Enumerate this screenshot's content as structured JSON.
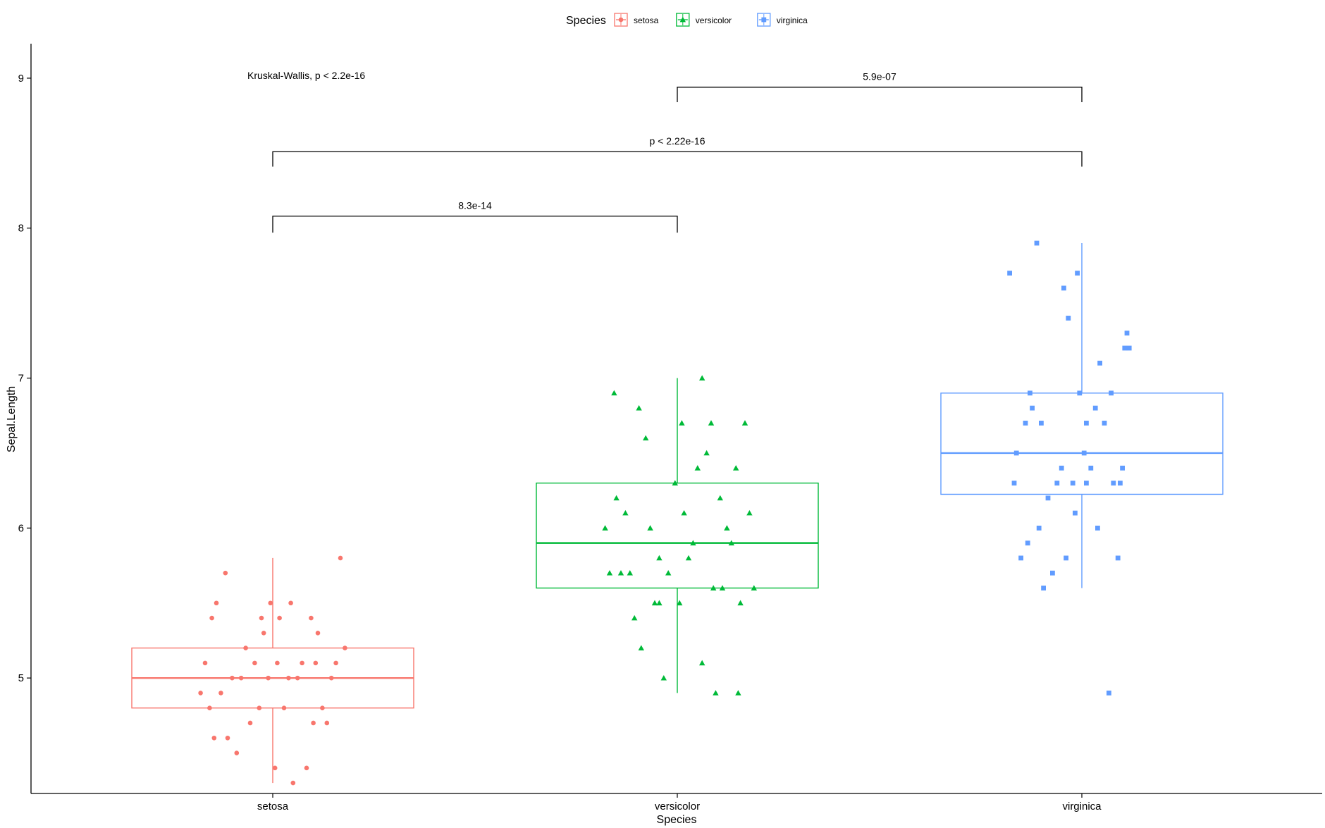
{
  "chart_data": {
    "type": "box",
    "xlabel": "Species",
    "ylabel": "Sepal.Length",
    "categories": [
      "setosa",
      "versicolor",
      "virginica"
    ],
    "ylim": [
      4.23,
      9.23
    ],
    "yticks": [
      5,
      6,
      7,
      8,
      9
    ],
    "legend": {
      "title": "Species",
      "position": "top",
      "entries": [
        {
          "name": "setosa",
          "color": "#F8766D",
          "shape": "circle"
        },
        {
          "name": "versicolor",
          "color": "#00BA38",
          "shape": "triangle"
        },
        {
          "name": "virginica",
          "color": "#619CFF",
          "shape": "square"
        }
      ]
    },
    "series": [
      {
        "name": "setosa",
        "color": "#F8766D",
        "shape": "circle",
        "box": {
          "min": 4.3,
          "q1": 4.8,
          "median": 5.0,
          "q3": 5.2,
          "max": 5.8
        },
        "points": [
          {
            "x": -0.32,
            "y": 4.9
          },
          {
            "x": -0.3,
            "y": 5.1
          },
          {
            "x": -0.28,
            "y": 4.8
          },
          {
            "x": -0.27,
            "y": 5.4
          },
          {
            "x": -0.26,
            "y": 4.6
          },
          {
            "x": -0.25,
            "y": 5.5
          },
          {
            "x": -0.23,
            "y": 4.9
          },
          {
            "x": -0.21,
            "y": 5.7
          },
          {
            "x": -0.2,
            "y": 4.6
          },
          {
            "x": -0.18,
            "y": 5.0
          },
          {
            "x": -0.16,
            "y": 4.5
          },
          {
            "x": -0.14,
            "y": 5.0
          },
          {
            "x": -0.12,
            "y": 5.2
          },
          {
            "x": -0.1,
            "y": 4.7
          },
          {
            "x": -0.08,
            "y": 5.1
          },
          {
            "x": -0.06,
            "y": 4.8
          },
          {
            "x": -0.04,
            "y": 5.3
          },
          {
            "x": -0.02,
            "y": 5.0
          },
          {
            "x": -0.01,
            "y": 5.5
          },
          {
            "x": 0.01,
            "y": 4.4
          },
          {
            "x": 0.02,
            "y": 5.1
          },
          {
            "x": 0.03,
            "y": 5.4
          },
          {
            "x": 0.05,
            "y": 4.8
          },
          {
            "x": 0.07,
            "y": 5.0
          },
          {
            "x": 0.09,
            "y": 4.3
          },
          {
            "x": 0.11,
            "y": 5.0
          },
          {
            "x": 0.13,
            "y": 5.1
          },
          {
            "x": 0.15,
            "y": 4.4
          },
          {
            "x": 0.17,
            "y": 5.4
          },
          {
            "x": 0.19,
            "y": 5.1
          },
          {
            "x": 0.2,
            "y": 5.3
          },
          {
            "x": 0.22,
            "y": 4.8
          },
          {
            "x": 0.24,
            "y": 4.7
          },
          {
            "x": 0.26,
            "y": 5.0
          },
          {
            "x": 0.28,
            "y": 5.1
          },
          {
            "x": 0.3,
            "y": 5.8
          },
          {
            "x": 0.32,
            "y": 5.2
          },
          {
            "x": 0.18,
            "y": 4.7
          },
          {
            "x": -0.05,
            "y": 5.4
          },
          {
            "x": 0.08,
            "y": 5.5
          }
        ]
      },
      {
        "name": "versicolor",
        "color": "#00BA38",
        "shape": "triangle",
        "box": {
          "min": 4.9,
          "q1": 5.6,
          "median": 5.9,
          "q3": 6.3,
          "max": 7.0
        },
        "points": [
          {
            "x": -0.32,
            "y": 6.0
          },
          {
            "x": -0.3,
            "y": 5.7
          },
          {
            "x": -0.28,
            "y": 6.9
          },
          {
            "x": -0.27,
            "y": 6.2
          },
          {
            "x": -0.25,
            "y": 5.7
          },
          {
            "x": -0.23,
            "y": 6.1
          },
          {
            "x": -0.21,
            "y": 5.7
          },
          {
            "x": -0.19,
            "y": 5.4
          },
          {
            "x": -0.17,
            "y": 6.8
          },
          {
            "x": -0.16,
            "y": 5.2
          },
          {
            "x": -0.14,
            "y": 6.6
          },
          {
            "x": -0.12,
            "y": 6.0
          },
          {
            "x": -0.1,
            "y": 5.5
          },
          {
            "x": -0.08,
            "y": 5.8
          },
          {
            "x": -0.06,
            "y": 5.0
          },
          {
            "x": -0.04,
            "y": 5.7
          },
          {
            "x": -0.01,
            "y": 6.3
          },
          {
            "x": 0.01,
            "y": 5.5
          },
          {
            "x": 0.02,
            "y": 6.7
          },
          {
            "x": 0.03,
            "y": 6.1
          },
          {
            "x": 0.05,
            "y": 5.8
          },
          {
            "x": 0.07,
            "y": 5.9
          },
          {
            "x": 0.09,
            "y": 6.4
          },
          {
            "x": 0.11,
            "y": 5.1
          },
          {
            "x": 0.13,
            "y": 6.5
          },
          {
            "x": 0.15,
            "y": 6.7
          },
          {
            "x": 0.16,
            "y": 5.6
          },
          {
            "x": 0.17,
            "y": 4.9
          },
          {
            "x": 0.19,
            "y": 6.2
          },
          {
            "x": 0.2,
            "y": 5.6
          },
          {
            "x": 0.22,
            "y": 6.0
          },
          {
            "x": 0.24,
            "y": 5.9
          },
          {
            "x": 0.26,
            "y": 6.4
          },
          {
            "x": 0.28,
            "y": 5.5
          },
          {
            "x": 0.3,
            "y": 6.7
          },
          {
            "x": 0.32,
            "y": 6.1
          },
          {
            "x": 0.27,
            "y": 4.9
          },
          {
            "x": 0.11,
            "y": 7.0
          },
          {
            "x": -0.08,
            "y": 5.5
          },
          {
            "x": 0.34,
            "y": 5.6
          }
        ]
      },
      {
        "name": "virginica",
        "color": "#619CFF",
        "shape": "square",
        "box": {
          "min": 5.6,
          "q1": 6.225,
          "median": 6.5,
          "q3": 6.9,
          "max": 7.9
        },
        "points": [
          {
            "x": -0.32,
            "y": 7.7
          },
          {
            "x": -0.3,
            "y": 6.3
          },
          {
            "x": -0.29,
            "y": 6.5
          },
          {
            "x": -0.27,
            "y": 5.8
          },
          {
            "x": -0.25,
            "y": 6.7
          },
          {
            "x": -0.24,
            "y": 5.9
          },
          {
            "x": -0.23,
            "y": 6.9
          },
          {
            "x": -0.22,
            "y": 6.8
          },
          {
            "x": -0.2,
            "y": 7.9
          },
          {
            "x": -0.19,
            "y": 6.0
          },
          {
            "x": -0.18,
            "y": 6.7
          },
          {
            "x": -0.17,
            "y": 5.6
          },
          {
            "x": -0.15,
            "y": 6.2
          },
          {
            "x": -0.13,
            "y": 5.7
          },
          {
            "x": -0.11,
            "y": 6.3
          },
          {
            "x": -0.09,
            "y": 6.4
          },
          {
            "x": -0.08,
            "y": 7.6
          },
          {
            "x": -0.07,
            "y": 5.8
          },
          {
            "x": -0.06,
            "y": 7.4
          },
          {
            "x": -0.04,
            "y": 6.3
          },
          {
            "x": -0.02,
            "y": 7.7
          },
          {
            "x": -0.01,
            "y": 6.9
          },
          {
            "x": 0.01,
            "y": 6.5
          },
          {
            "x": 0.02,
            "y": 6.3
          },
          {
            "x": 0.04,
            "y": 6.4
          },
          {
            "x": 0.06,
            "y": 6.8
          },
          {
            "x": 0.08,
            "y": 7.1
          },
          {
            "x": 0.1,
            "y": 6.7
          },
          {
            "x": 0.12,
            "y": 4.9
          },
          {
            "x": 0.14,
            "y": 6.3
          },
          {
            "x": 0.16,
            "y": 5.8
          },
          {
            "x": 0.17,
            "y": 6.3
          },
          {
            "x": 0.18,
            "y": 6.4
          },
          {
            "x": 0.19,
            "y": 7.2
          },
          {
            "x": 0.21,
            "y": 7.2
          },
          {
            "x": 0.13,
            "y": 6.9
          },
          {
            "x": 0.02,
            "y": 6.7
          },
          {
            "x": -0.03,
            "y": 6.1
          },
          {
            "x": 0.07,
            "y": 6.0
          },
          {
            "x": 0.2,
            "y": 7.3
          }
        ]
      }
    ],
    "comparisons": [
      {
        "from": "setosa",
        "to": "versicolor",
        "label": "8.3e-14",
        "y_bracket": 8.08,
        "y_tip": 7.97
      },
      {
        "from": "setosa",
        "to": "virginica",
        "label": "p < 2.22e-16",
        "y_bracket": 8.51,
        "y_tip": 8.41
      },
      {
        "from": "versicolor",
        "to": "virginica",
        "label": "5.9e-07",
        "y_bracket": 8.94,
        "y_tip": 8.84
      }
    ],
    "annotation": {
      "text": "Kruskal-Wallis, p < 2.2e-16",
      "x_category": "setosa",
      "y": 9.0
    }
  }
}
